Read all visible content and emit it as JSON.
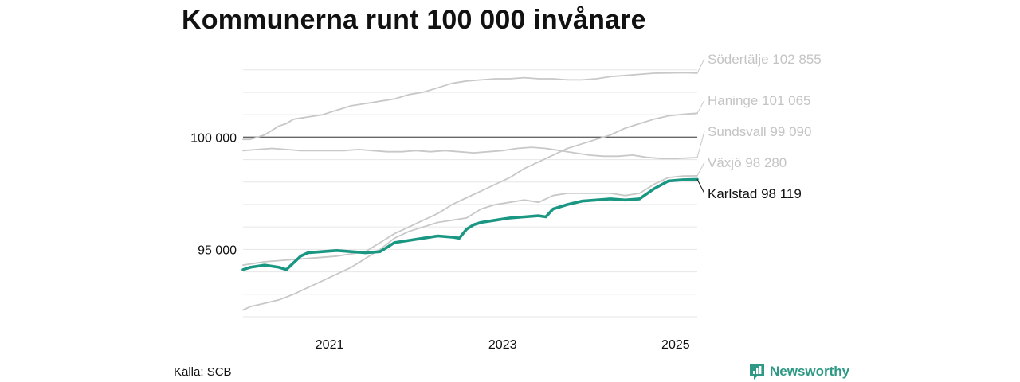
{
  "title": "Kommunerna runt 100 000 invånare",
  "source": "Källa: SCB",
  "brand": "Newsworthy",
  "colors": {
    "highlight": "#1a9783",
    "other": "#c8c8c8",
    "reference": "#666666",
    "grid": "#e6e6e6",
    "brand": "#2e9a85"
  },
  "chart_data": {
    "type": "line",
    "title": "Kommunerna runt 100 000 invånare",
    "xlabel": "",
    "ylabel": "",
    "x_range": [
      "2020-01",
      "2025-04"
    ],
    "ylim": [
      92000,
      103700
    ],
    "y_ticks": [
      95000,
      100000
    ],
    "y_tick_labels": [
      "95 000",
      "100 000"
    ],
    "x_ticks": [
      "2021-01",
      "2023-01",
      "2025-01"
    ],
    "x_tick_labels": [
      "2021",
      "2023",
      "2025"
    ],
    "reference_line": 100000,
    "grid": true,
    "series": [
      {
        "name": "Södertälje",
        "label": "Södertälje 102 855",
        "highlight": false,
        "points": [
          [
            "2020-01",
            99900
          ],
          [
            "2020-02",
            99900
          ],
          [
            "2020-03",
            100000
          ],
          [
            "2020-04",
            100100
          ],
          [
            "2020-05",
            100300
          ],
          [
            "2020-06",
            100500
          ],
          [
            "2020-07",
            100600
          ],
          [
            "2020-08",
            100800
          ],
          [
            "2020-10",
            100900
          ],
          [
            "2020-12",
            101000
          ],
          [
            "2021-02",
            101200
          ],
          [
            "2021-04",
            101400
          ],
          [
            "2021-06",
            101500
          ],
          [
            "2021-08",
            101600
          ],
          [
            "2021-10",
            101700
          ],
          [
            "2021-12",
            101900
          ],
          [
            "2022-02",
            102000
          ],
          [
            "2022-04",
            102200
          ],
          [
            "2022-06",
            102400
          ],
          [
            "2022-08",
            102500
          ],
          [
            "2022-10",
            102550
          ],
          [
            "2022-12",
            102600
          ],
          [
            "2023-02",
            102600
          ],
          [
            "2023-04",
            102650
          ],
          [
            "2023-06",
            102600
          ],
          [
            "2023-08",
            102600
          ],
          [
            "2023-10",
            102550
          ],
          [
            "2023-12",
            102550
          ],
          [
            "2024-02",
            102600
          ],
          [
            "2024-04",
            102700
          ],
          [
            "2024-06",
            102750
          ],
          [
            "2024-08",
            102800
          ],
          [
            "2024-10",
            102850
          ],
          [
            "2024-12",
            102860
          ],
          [
            "2025-02",
            102870
          ],
          [
            "2025-04",
            102855
          ]
        ]
      },
      {
        "name": "Haninge",
        "label": "Haninge 101 065",
        "highlight": false,
        "points": [
          [
            "2020-01",
            94300
          ],
          [
            "2020-02",
            94350
          ],
          [
            "2020-03",
            94400
          ],
          [
            "2020-04",
            94450
          ],
          [
            "2020-06",
            94500
          ],
          [
            "2020-08",
            94550
          ],
          [
            "2020-10",
            94600
          ],
          [
            "2020-12",
            94650
          ],
          [
            "2021-02",
            94700
          ],
          [
            "2021-04",
            94800
          ],
          [
            "2021-06",
            94900
          ],
          [
            "2021-08",
            95300
          ],
          [
            "2021-10",
            95700
          ],
          [
            "2021-12",
            96000
          ],
          [
            "2022-02",
            96300
          ],
          [
            "2022-04",
            96600
          ],
          [
            "2022-06",
            97000
          ],
          [
            "2022-08",
            97300
          ],
          [
            "2022-10",
            97600
          ],
          [
            "2022-12",
            97900
          ],
          [
            "2023-02",
            98200
          ],
          [
            "2023-04",
            98600
          ],
          [
            "2023-06",
            98900
          ],
          [
            "2023-08",
            99200
          ],
          [
            "2023-10",
            99500
          ],
          [
            "2023-12",
            99700
          ],
          [
            "2024-02",
            99900
          ],
          [
            "2024-04",
            100100
          ],
          [
            "2024-06",
            100400
          ],
          [
            "2024-08",
            100600
          ],
          [
            "2024-10",
            100800
          ],
          [
            "2024-12",
            100950
          ],
          [
            "2025-02",
            101020
          ],
          [
            "2025-04",
            101065
          ]
        ]
      },
      {
        "name": "Sundsvall",
        "label": "Sundsvall  99 090",
        "highlight": false,
        "points": [
          [
            "2020-01",
            99400
          ],
          [
            "2020-03",
            99450
          ],
          [
            "2020-05",
            99500
          ],
          [
            "2020-07",
            99450
          ],
          [
            "2020-09",
            99400
          ],
          [
            "2020-11",
            99400
          ],
          [
            "2021-01",
            99400
          ],
          [
            "2021-03",
            99400
          ],
          [
            "2021-05",
            99450
          ],
          [
            "2021-07",
            99400
          ],
          [
            "2021-09",
            99350
          ],
          [
            "2021-11",
            99350
          ],
          [
            "2022-01",
            99400
          ],
          [
            "2022-03",
            99350
          ],
          [
            "2022-05",
            99400
          ],
          [
            "2022-07",
            99350
          ],
          [
            "2022-09",
            99300
          ],
          [
            "2022-11",
            99350
          ],
          [
            "2023-01",
            99400
          ],
          [
            "2023-03",
            99500
          ],
          [
            "2023-05",
            99550
          ],
          [
            "2023-07",
            99500
          ],
          [
            "2023-09",
            99400
          ],
          [
            "2023-11",
            99300
          ],
          [
            "2024-01",
            99200
          ],
          [
            "2024-03",
            99150
          ],
          [
            "2024-05",
            99150
          ],
          [
            "2024-07",
            99200
          ],
          [
            "2024-09",
            99100
          ],
          [
            "2024-11",
            99050
          ],
          [
            "2025-01",
            99050
          ],
          [
            "2025-04",
            99090
          ]
        ]
      },
      {
        "name": "Växjö",
        "label": "Växjö  98 280",
        "highlight": false,
        "points": [
          [
            "2020-01",
            92300
          ],
          [
            "2020-02",
            92450
          ],
          [
            "2020-04",
            92600
          ],
          [
            "2020-06",
            92750
          ],
          [
            "2020-08",
            93000
          ],
          [
            "2020-10",
            93300
          ],
          [
            "2020-12",
            93600
          ],
          [
            "2021-02",
            93900
          ],
          [
            "2021-04",
            94200
          ],
          [
            "2021-06",
            94600
          ],
          [
            "2021-08",
            95000
          ],
          [
            "2021-10",
            95500
          ],
          [
            "2021-12",
            95800
          ],
          [
            "2022-02",
            96000
          ],
          [
            "2022-04",
            96200
          ],
          [
            "2022-06",
            96300
          ],
          [
            "2022-08",
            96400
          ],
          [
            "2022-10",
            96800
          ],
          [
            "2022-12",
            97000
          ],
          [
            "2023-02",
            97100
          ],
          [
            "2023-04",
            97200
          ],
          [
            "2023-06",
            97100
          ],
          [
            "2023-08",
            97400
          ],
          [
            "2023-10",
            97500
          ],
          [
            "2023-12",
            97500
          ],
          [
            "2024-02",
            97500
          ],
          [
            "2024-04",
            97500
          ],
          [
            "2024-06",
            97400
          ],
          [
            "2024-08",
            97500
          ],
          [
            "2024-10",
            97900
          ],
          [
            "2024-12",
            98200
          ],
          [
            "2025-02",
            98270
          ],
          [
            "2025-04",
            98280
          ]
        ]
      },
      {
        "name": "Karlstad",
        "label": "Karlstad  98 119",
        "highlight": true,
        "points": [
          [
            "2020-01",
            94100
          ],
          [
            "2020-02",
            94200
          ],
          [
            "2020-04",
            94300
          ],
          [
            "2020-06",
            94200
          ],
          [
            "2020-07",
            94100
          ],
          [
            "2020-08",
            94400
          ],
          [
            "2020-09",
            94700
          ],
          [
            "2020-10",
            94850
          ],
          [
            "2020-12",
            94900
          ],
          [
            "2021-02",
            94950
          ],
          [
            "2021-04",
            94900
          ],
          [
            "2021-06",
            94850
          ],
          [
            "2021-08",
            94900
          ],
          [
            "2021-09",
            95100
          ],
          [
            "2021-10",
            95300
          ],
          [
            "2021-12",
            95400
          ],
          [
            "2022-02",
            95500
          ],
          [
            "2022-04",
            95600
          ],
          [
            "2022-06",
            95550
          ],
          [
            "2022-07",
            95500
          ],
          [
            "2022-08",
            95900
          ],
          [
            "2022-09",
            96100
          ],
          [
            "2022-10",
            96200
          ],
          [
            "2022-12",
            96300
          ],
          [
            "2023-02",
            96400
          ],
          [
            "2023-04",
            96450
          ],
          [
            "2023-06",
            96500
          ],
          [
            "2023-07",
            96450
          ],
          [
            "2023-08",
            96800
          ],
          [
            "2023-10",
            97000
          ],
          [
            "2023-12",
            97150
          ],
          [
            "2024-02",
            97200
          ],
          [
            "2024-04",
            97250
          ],
          [
            "2024-06",
            97200
          ],
          [
            "2024-08",
            97250
          ],
          [
            "2024-10",
            97700
          ],
          [
            "2024-12",
            98050
          ],
          [
            "2025-02",
            98100
          ],
          [
            "2025-04",
            98119
          ]
        ]
      }
    ]
  }
}
